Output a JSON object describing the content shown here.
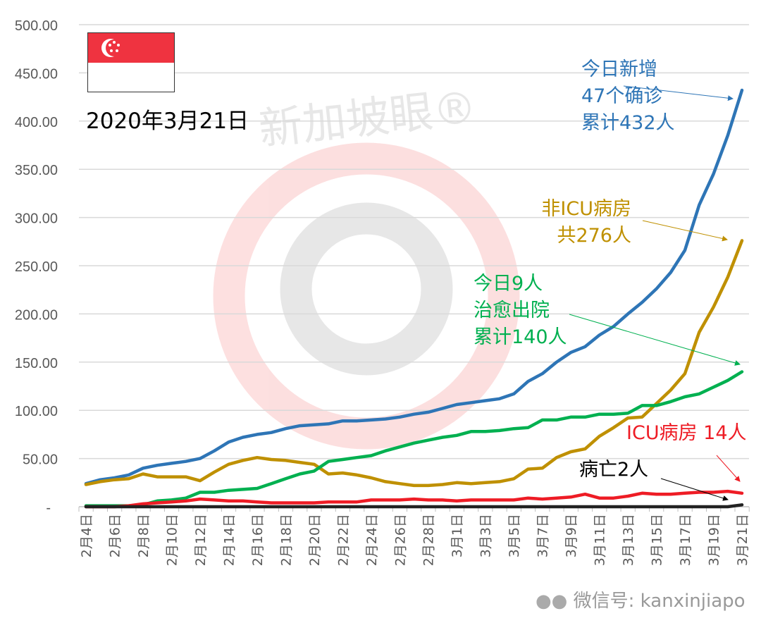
{
  "chart_data": {
    "type": "line",
    "title": "2020年3月21日",
    "categories": [
      "2月4日",
      "2月5日",
      "2月6日",
      "2月7日",
      "2月8日",
      "2月9日",
      "2月10日",
      "2月11日",
      "2月12日",
      "2月13日",
      "2月14日",
      "2月15日",
      "2月16日",
      "2月17日",
      "2月18日",
      "2月19日",
      "2月20日",
      "2月21日",
      "2月22日",
      "2月23日",
      "2月24日",
      "2月25日",
      "2月26日",
      "2月27日",
      "2月28日",
      "2月29日",
      "3月1日",
      "3月2日",
      "3月3日",
      "3月4日",
      "3月5日",
      "3月6日",
      "3月7日",
      "3月8日",
      "3月9日",
      "3月10日",
      "3月11日",
      "3月12日",
      "3月13日",
      "3月14日",
      "3月15日",
      "3月16日",
      "3月17日",
      "3月18日",
      "3月19日",
      "3月20日",
      "3月21日"
    ],
    "xtick_labels": [
      "2月4日",
      "2月6日",
      "2月8日",
      "2月10日",
      "2月12日",
      "2月14日",
      "2月16日",
      "2月18日",
      "2月20日",
      "2月22日",
      "2月24日",
      "2月26日",
      "2月28日",
      "3月1日",
      "3月3日",
      "3月5日",
      "3月7日",
      "3月9日",
      "3月11日",
      "3月13日",
      "3月15日",
      "3月17日",
      "3月19日",
      "3月21日"
    ],
    "ytick_labels": [
      "-",
      "50.00",
      "100.00",
      "150.00",
      "200.00",
      "250.00",
      "300.00",
      "350.00",
      "400.00",
      "450.00",
      "500.00"
    ],
    "ylim": [
      0,
      500
    ],
    "grid": true,
    "series": [
      {
        "key": "confirmed",
        "color": "#2e75b6",
        "values": [
          24,
          28,
          30,
          33,
          40,
          43,
          45,
          47,
          50,
          58,
          67,
          72,
          75,
          77,
          81,
          84,
          85,
          86,
          89,
          89,
          90,
          91,
          93,
          96,
          98,
          102,
          106,
          108,
          110,
          112,
          117,
          130,
          138,
          150,
          160,
          166,
          178,
          187,
          200,
          212,
          226,
          243,
          266,
          313,
          345,
          385,
          432
        ]
      },
      {
        "key": "non_icu",
        "color": "#bf9000",
        "values": [
          23,
          26,
          28,
          29,
          34,
          31,
          31,
          31,
          27,
          36,
          44,
          48,
          51,
          49,
          48,
          46,
          44,
          34,
          35,
          33,
          30,
          26,
          24,
          22,
          22,
          23,
          25,
          24,
          25,
          26,
          29,
          39,
          40,
          51,
          57,
          60,
          73,
          82,
          92,
          93,
          107,
          121,
          138,
          181,
          207,
          238,
          276
        ]
      },
      {
        "key": "discharged",
        "color": "#00b050",
        "values": [
          1,
          1,
          1,
          1,
          2,
          6,
          7,
          9,
          15,
          15,
          17,
          18,
          19,
          24,
          29,
          34,
          37,
          47,
          49,
          51,
          53,
          58,
          62,
          66,
          69,
          72,
          74,
          78,
          78,
          79,
          81,
          82,
          90,
          90,
          93,
          93,
          96,
          96,
          97,
          105,
          105,
          109,
          114,
          117,
          124,
          131,
          140
        ]
      },
      {
        "key": "icu",
        "color": "#ee1c25",
        "values": [
          0,
          0,
          0,
          1,
          3,
          4,
          5,
          6,
          8,
          7,
          6,
          6,
          5,
          4,
          4,
          4,
          4,
          5,
          5,
          5,
          7,
          7,
          7,
          8,
          7,
          7,
          6,
          7,
          7,
          7,
          7,
          9,
          8,
          9,
          10,
          13,
          9,
          9,
          11,
          14,
          13,
          13,
          14,
          15,
          15,
          16,
          14
        ]
      },
      {
        "key": "deaths",
        "color": "#222222",
        "values": [
          0,
          0,
          0,
          0,
          0,
          0,
          0,
          0,
          0,
          0,
          0,
          0,
          0,
          0,
          0,
          0,
          0,
          0,
          0,
          0,
          0,
          0,
          0,
          0,
          0,
          0,
          0,
          0,
          0,
          0,
          0,
          0,
          0,
          0,
          0,
          0,
          0,
          0,
          0,
          0,
          0,
          0,
          0,
          0,
          0,
          0,
          2
        ]
      }
    ],
    "annotations": {
      "confirmed": [
        "今日新增",
        "47个确诊",
        "累计432人"
      ],
      "non_icu": [
        "非ICU病房",
        "共276人"
      ],
      "discharged": [
        "今日9人",
        "治愈出院",
        "累计140人"
      ],
      "icu": [
        "ICU病房 14人"
      ],
      "deaths": [
        "病亡2人"
      ]
    }
  },
  "watermark": "新加坡眼®",
  "credit": "微信号: kanxinjiapo",
  "flag": "singapore-flag"
}
